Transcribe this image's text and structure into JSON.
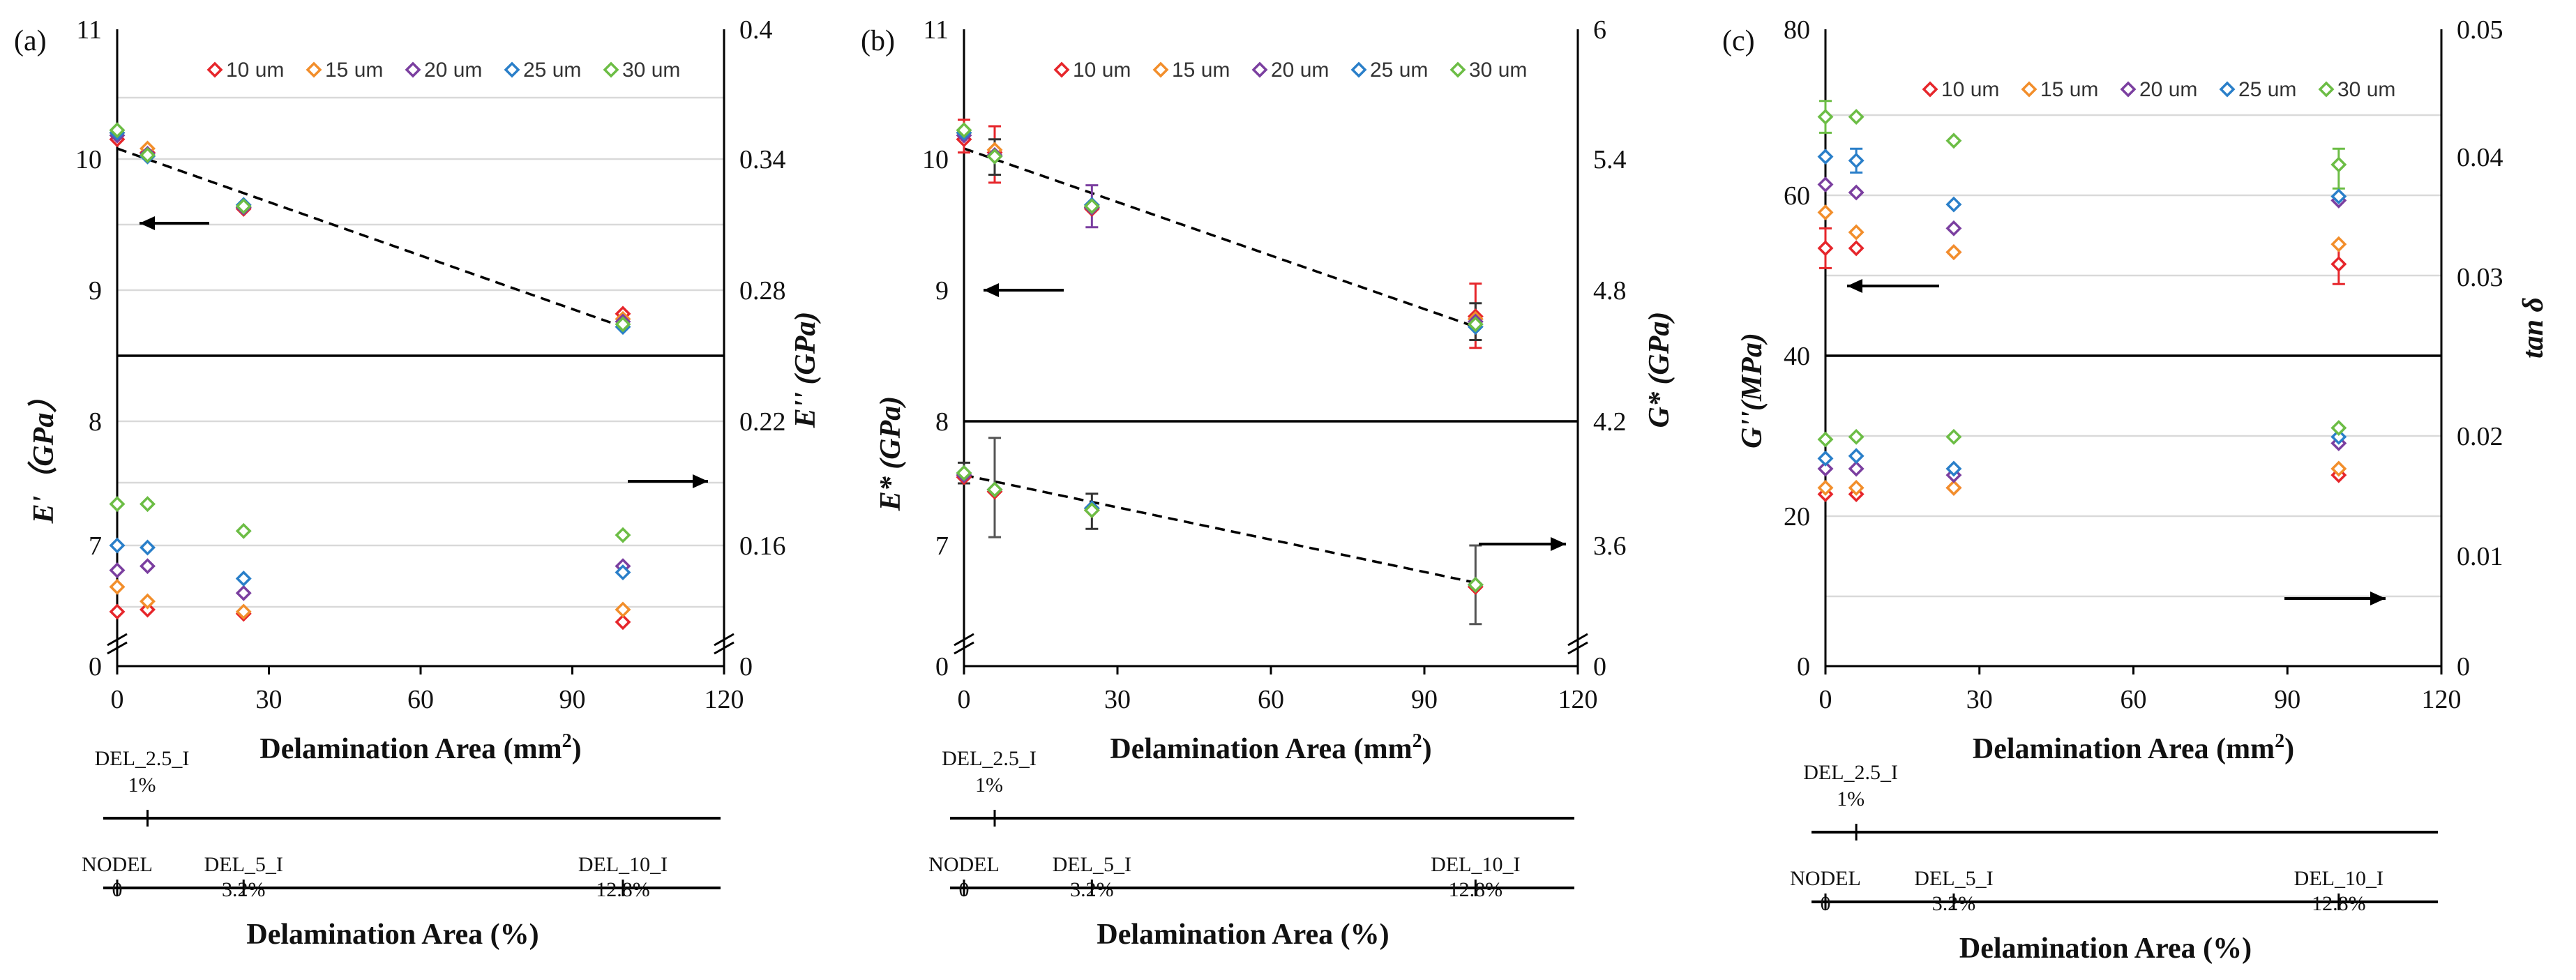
{
  "chart_data": [
    {
      "type": "scatter",
      "panel": "(a)",
      "xlabel": "Delamination Area (mm2)",
      "xlabel_main": "Delamination Area (mm",
      "xlabel_sup": "2",
      "xlabel_close": ")",
      "xlim": [
        0,
        120
      ],
      "xticks": [
        0,
        30,
        60,
        90,
        120
      ],
      "ylabel_left": "E'（GPa）",
      "ylabel_right": "E'' (GPa)",
      "y_left_ticks": [
        "11",
        "10",
        "9",
        "8",
        "7",
        "0"
      ],
      "y_right_ticks": [
        "0.4",
        "0.34",
        "0.28",
        "0.22",
        "0.16",
        "0"
      ],
      "legend": [
        "10 um",
        "15 um",
        "20 um",
        "25 um",
        "30 um"
      ],
      "x": [
        0,
        6,
        25,
        100
      ],
      "upper_series": [
        {
          "name": "10 um",
          "values": [
            10.15,
            10.05,
            9.62,
            8.82
          ]
        },
        {
          "name": "15 um",
          "values": [
            10.2,
            10.08,
            9.63,
            8.78
          ]
        },
        {
          "name": "20 um",
          "values": [
            10.18,
            10.04,
            9.63,
            8.76
          ]
        },
        {
          "name": "25 um",
          "values": [
            10.2,
            10.02,
            9.65,
            8.72
          ]
        },
        {
          "name": "30 um",
          "values": [
            10.22,
            10.03,
            9.64,
            8.74
          ]
        }
      ],
      "upper_trend": [
        [
          0,
          10.08
        ],
        [
          100,
          8.72
        ]
      ],
      "lower_series": [
        {
          "name": "10 um",
          "values": [
            0.128,
            0.129,
            0.127,
            0.123
          ]
        },
        {
          "name": "15 um",
          "values": [
            0.14,
            0.133,
            0.128,
            0.129
          ]
        },
        {
          "name": "20 um",
          "values": [
            0.148,
            0.15,
            0.137,
            0.15
          ]
        },
        {
          "name": "25 um",
          "values": [
            0.16,
            0.159,
            0.144,
            0.147
          ]
        },
        {
          "name": "30 um",
          "values": [
            0.18,
            0.18,
            0.167,
            0.165
          ]
        }
      ],
      "categories": [
        {
          "label": "DEL_2.5_I",
          "pct": "1%",
          "x": 6
        },
        {
          "label": "NODEL",
          "pct": "0",
          "x": 0
        },
        {
          "label": "DEL_5_I",
          "pct": "3.2%",
          "x": 25
        },
        {
          "label": "DEL_10_I",
          "pct": "12.8%",
          "x": 100
        }
      ],
      "category_axis_title": "Delamination Area (%)"
    },
    {
      "type": "scatter",
      "panel": "(b)",
      "xlabel": "Delamination Area (mm2)",
      "xlabel_main": "Delamination Area (mm",
      "xlabel_sup": "2",
      "xlabel_close": ")",
      "xlim": [
        0,
        120
      ],
      "xticks": [
        0,
        30,
        60,
        90,
        120
      ],
      "ylabel_left": "E* (GPa)",
      "ylabel_right": "G* (GPa)",
      "y_left_ticks": [
        "11",
        "10",
        "9",
        "8",
        "7",
        "0"
      ],
      "y_right_ticks": [
        "6",
        "5.4",
        "4.8",
        "4.2",
        "3.6",
        "0"
      ],
      "legend": [
        "10 um",
        "15 um",
        "20 um",
        "25 um",
        "30 um"
      ],
      "x": [
        0,
        6,
        25,
        100
      ],
      "upper_series": [
        {
          "name": "10 um",
          "values": [
            10.15,
            10.05,
            9.62,
            8.8
          ]
        },
        {
          "name": "15 um",
          "values": [
            10.2,
            10.07,
            9.63,
            8.78
          ]
        },
        {
          "name": "20 um",
          "values": [
            10.18,
            10.03,
            9.63,
            8.76
          ]
        },
        {
          "name": "25 um",
          "values": [
            10.2,
            10.02,
            9.65,
            8.72
          ]
        },
        {
          "name": "30 um",
          "values": [
            10.22,
            10.02,
            9.64,
            8.74
          ]
        }
      ],
      "upper_trend": [
        [
          0,
          10.08
        ],
        [
          100,
          8.72
        ]
      ],
      "lower_series": [
        {
          "name": "10 um",
          "values": [
            3.93,
            3.86,
            3.77,
            3.4
          ]
        },
        {
          "name": "15 um",
          "values": [
            3.94,
            3.87,
            3.77,
            3.41
          ]
        },
        {
          "name": "20 um",
          "values": [
            3.94,
            3.87,
            3.78,
            3.41
          ]
        },
        {
          "name": "25 um",
          "values": [
            3.95,
            3.87,
            3.78,
            3.41
          ]
        },
        {
          "name": "30 um",
          "values": [
            3.95,
            3.87,
            3.77,
            3.41
          ]
        }
      ],
      "lower_trend": [
        [
          0,
          3.94
        ],
        [
          100,
          3.42
        ]
      ],
      "categories": [
        {
          "label": "DEL_2.5_I",
          "pct": "1%",
          "x": 6
        },
        {
          "label": "NODEL",
          "pct": "0",
          "x": 0
        },
        {
          "label": "DEL_5_I",
          "pct": "3.2%",
          "x": 25
        },
        {
          "label": "DEL_10_I",
          "pct": "12.8%",
          "x": 100
        }
      ],
      "category_axis_title": "Delamination Area (%)"
    },
    {
      "type": "scatter",
      "panel": "(c)",
      "xlabel": "Delamination Area (mm2)",
      "xlabel_main": "Delamination Area (mm",
      "xlabel_sup": "2",
      "xlabel_close": ")",
      "xlim": [
        0,
        120
      ],
      "xticks": [
        0,
        30,
        60,
        90,
        120
      ],
      "ylabel_left": "G''(MPa)",
      "ylabel_right": "tan δ",
      "y_left_ticks": [
        "80",
        "60",
        "40",
        "20",
        "0"
      ],
      "y_right_ticks": [
        "0.05",
        "0.04",
        "0.03",
        "0.02",
        "0.01",
        "0"
      ],
      "ylim_left": [
        0,
        80
      ],
      "ylim_right": [
        0,
        0.05
      ],
      "legend": [
        "10 um",
        "15 um",
        "20 um",
        "25 um",
        "30 um"
      ],
      "x": [
        0,
        6,
        25,
        100
      ],
      "upper_series": [
        {
          "name": "10 um",
          "values": [
            52.5,
            52.5,
            52,
            50.5
          ]
        },
        {
          "name": "15 um",
          "values": [
            57,
            54.5,
            52,
            53
          ]
        },
        {
          "name": "20 um",
          "values": [
            60.5,
            59.5,
            55,
            58.5
          ]
        },
        {
          "name": "25 um",
          "values": [
            64,
            63.5,
            58,
            59
          ]
        },
        {
          "name": "30 um",
          "values": [
            69,
            69,
            66,
            63
          ]
        }
      ],
      "lower_series": [
        {
          "name": "10 um",
          "values": [
            0.0135,
            0.0135,
            0.014,
            0.015
          ]
        },
        {
          "name": "15 um",
          "values": [
            0.014,
            0.014,
            0.014,
            0.0155
          ]
        },
        {
          "name": "20 um",
          "values": [
            0.0155,
            0.0155,
            0.015,
            0.0175
          ]
        },
        {
          "name": "25 um",
          "values": [
            0.0163,
            0.0165,
            0.0155,
            0.018
          ]
        },
        {
          "name": "30 um",
          "values": [
            0.0178,
            0.018,
            0.018,
            0.0187
          ]
        }
      ],
      "categories": [
        {
          "label": "DEL_2.5_I",
          "pct": "1%",
          "x": 6
        },
        {
          "label": "NODEL",
          "pct": "0",
          "x": 0
        },
        {
          "label": "DEL_5_I",
          "pct": "3.2%",
          "x": 25
        },
        {
          "label": "DEL_10_I",
          "pct": "12.8%",
          "x": 100
        }
      ],
      "category_axis_title": "Delamination Area (%)"
    }
  ],
  "colors": {
    "10 um": "#e6262b",
    "15 um": "#f28e2b",
    "20 um": "#7b3fa0",
    "25 um": "#2a7fc9",
    "30 um": "#6cbd45",
    "dark": "#333333"
  }
}
